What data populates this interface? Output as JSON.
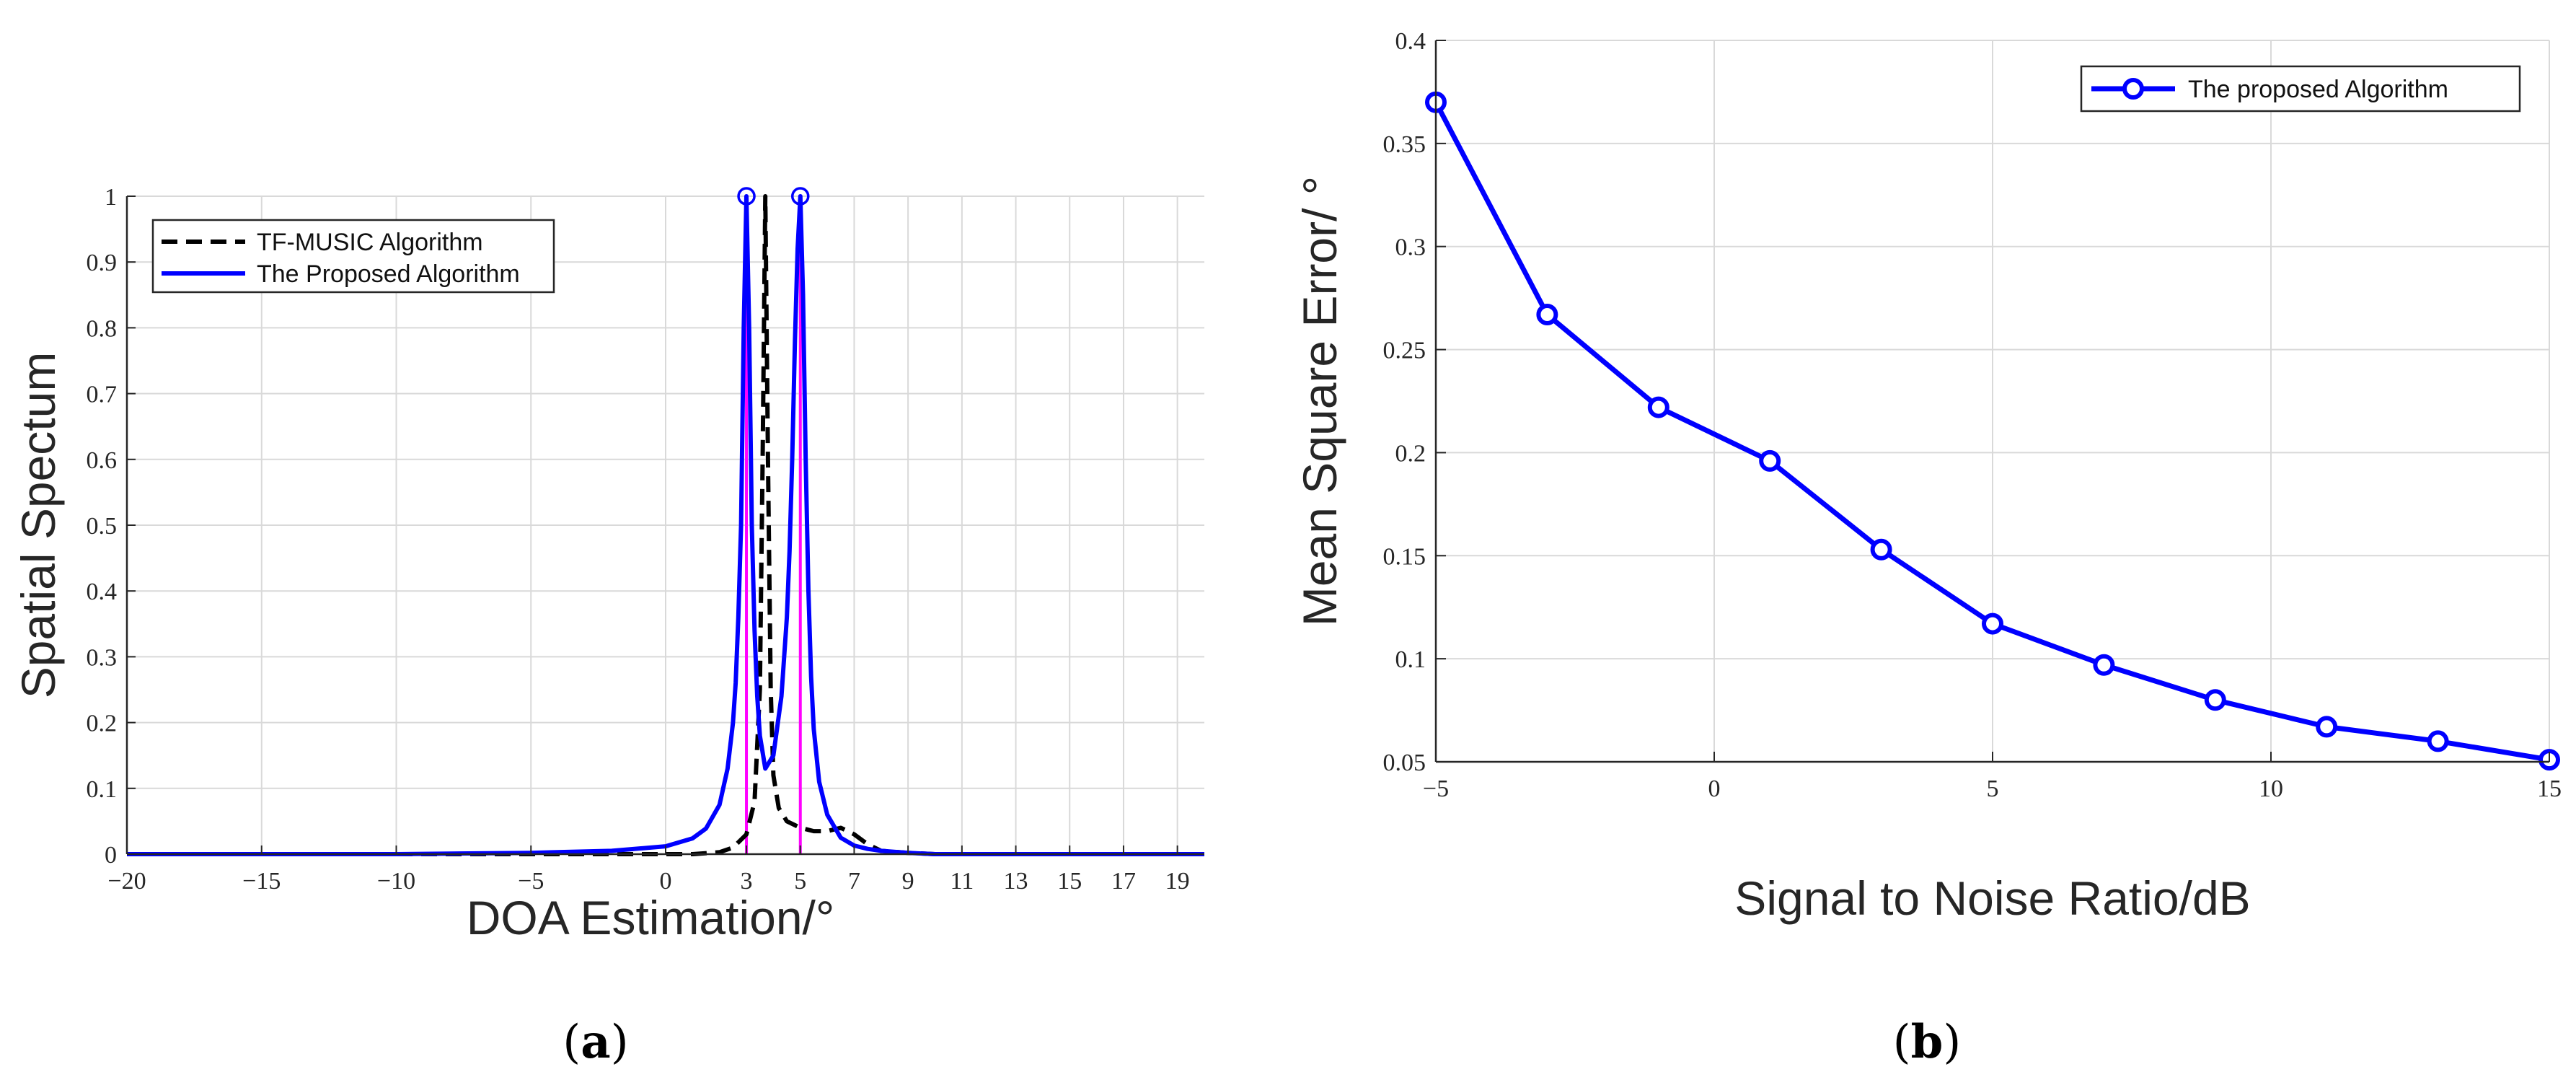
{
  "colors": {
    "tf_music": "#000000",
    "proposed": "#0000ff",
    "true_doa_markers": "#ff00ff",
    "grid": "#d9d9d9",
    "axes": "#262626"
  },
  "chart_data": [
    {
      "panel": "a",
      "type": "line",
      "xlabel": "DOA Estimation/°",
      "ylabel": "Spatial Spectum",
      "xlim": [
        -20,
        20
      ],
      "ylim": [
        0,
        1
      ],
      "xticks": [
        -20,
        -15,
        -10,
        -5,
        0,
        3,
        5,
        7,
        9,
        11,
        13,
        15,
        17,
        19
      ],
      "yticks": [
        0,
        0.1,
        0.2,
        0.3,
        0.4,
        0.5,
        0.6,
        0.7,
        0.8,
        0.9,
        1
      ],
      "grid": true,
      "legend_position": "top-left",
      "series": [
        {
          "name": "TF-MUSIC Algorithm",
          "style": "dashed",
          "x": [
            -20,
            -10,
            -5,
            0,
            1,
            2,
            2.5,
            3,
            3.3,
            3.5,
            3.6,
            3.7,
            3.8,
            3.9,
            4,
            4.2,
            4.5,
            5,
            5.5,
            6,
            6.5,
            7,
            7.5,
            8,
            9,
            10,
            15,
            20
          ],
          "y": [
            0,
            0,
            0,
            0,
            0,
            0.003,
            0.01,
            0.03,
            0.08,
            0.25,
            0.6,
            1.0,
            0.6,
            0.25,
            0.12,
            0.07,
            0.05,
            0.04,
            0.035,
            0.035,
            0.04,
            0.03,
            0.015,
            0.005,
            0.002,
            0,
            0,
            0
          ]
        },
        {
          "name": "The Proposed Algorithm",
          "style": "solid",
          "x": [
            -20,
            -10,
            -5,
            -2,
            0,
            1,
            1.5,
            2,
            2.3,
            2.5,
            2.6,
            2.7,
            2.8,
            2.9,
            3,
            3.1,
            3.2,
            3.3,
            3.4,
            3.5,
            3.7,
            4,
            4.3,
            4.5,
            4.6,
            4.7,
            4.8,
            4.9,
            5,
            5.1,
            5.2,
            5.3,
            5.4,
            5.5,
            5.7,
            6,
            6.5,
            7,
            7.5,
            8,
            9,
            10,
            15,
            20
          ],
          "y": [
            0,
            0,
            0.002,
            0.005,
            0.012,
            0.024,
            0.039,
            0.075,
            0.13,
            0.2,
            0.26,
            0.36,
            0.5,
            0.8,
            1.0,
            0.8,
            0.5,
            0.34,
            0.24,
            0.18,
            0.13,
            0.15,
            0.24,
            0.36,
            0.46,
            0.6,
            0.78,
            0.92,
            1.0,
            0.85,
            0.6,
            0.4,
            0.27,
            0.19,
            0.11,
            0.06,
            0.025,
            0.013,
            0.008,
            0.005,
            0.002,
            0,
            0,
            0
          ]
        }
      ],
      "peak_markers": [
        {
          "x": 3,
          "y": 1
        },
        {
          "x": 5,
          "y": 1
        }
      ]
    },
    {
      "panel": "b",
      "type": "line",
      "xlabel": "Signal to Noise Ratio/dB",
      "ylabel": "Mean Square Error/ °",
      "xlim": [
        -5,
        15
      ],
      "ylim": [
        0.05,
        0.4
      ],
      "xticks": [
        -5,
        0,
        5,
        10,
        15
      ],
      "yticks": [
        0.05,
        0.1,
        0.15,
        0.2,
        0.25,
        0.3,
        0.35,
        0.4
      ],
      "grid": true,
      "legend_position": "top-right",
      "series": [
        {
          "name": "The proposed Algorithm",
          "marker": "circle",
          "x": [
            -5,
            -3,
            -1,
            1,
            3,
            5,
            7,
            9,
            11,
            13,
            15
          ],
          "y": [
            0.37,
            0.267,
            0.222,
            0.196,
            0.153,
            0.117,
            0.097,
            0.08,
            0.067,
            0.06,
            0.051
          ]
        }
      ]
    }
  ],
  "panel_labels": {
    "a": "a",
    "b": "b"
  }
}
